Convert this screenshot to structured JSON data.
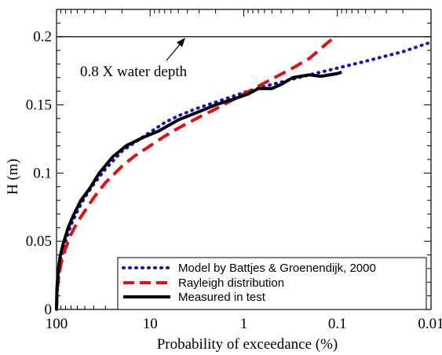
{
  "chart_data": {
    "type": "line",
    "title": "",
    "xlabel": "Probability of exceedance (%)",
    "ylabel": "H (m)",
    "xscale": "log",
    "xaxis_reversed": true,
    "xlim": [
      100,
      0.01
    ],
    "ylim": [
      0,
      0.22
    ],
    "xticks": [
      {
        "value": 100,
        "label": "100"
      },
      {
        "value": 10,
        "label": "10"
      },
      {
        "value": 1,
        "label": "1"
      },
      {
        "value": 0.1,
        "label": "0.1"
      },
      {
        "value": 0.01,
        "label": "0.01"
      }
    ],
    "yticks": [
      {
        "value": 0,
        "label": "0"
      },
      {
        "value": 0.05,
        "label": "0.05"
      },
      {
        "value": 0.1,
        "label": "0.1"
      },
      {
        "value": 0.15,
        "label": "0.15"
      },
      {
        "value": 0.2,
        "label": "0.2"
      }
    ],
    "grid": false,
    "legend_position": "bottom-right",
    "reference_line": {
      "y": 0.2,
      "label": "0.8 X water depth",
      "color": "#000000"
    },
    "series": [
      {
        "name": "Model by Battjes & Groenendijk, 2000",
        "color": "#1010d0",
        "style": "dotted",
        "points": [
          [
            100,
            0.0
          ],
          [
            99,
            0.01
          ],
          [
            95,
            0.025
          ],
          [
            90,
            0.037
          ],
          [
            80,
            0.05
          ],
          [
            70,
            0.062
          ],
          [
            60,
            0.072
          ],
          [
            50,
            0.082
          ],
          [
            40,
            0.092
          ],
          [
            30,
            0.103
          ],
          [
            20,
            0.116
          ],
          [
            15,
            0.122
          ],
          [
            10,
            0.13
          ],
          [
            7,
            0.137
          ],
          [
            5,
            0.142
          ],
          [
            3,
            0.148
          ],
          [
            2,
            0.152
          ],
          [
            1,
            0.159
          ],
          [
            0.5,
            0.165
          ],
          [
            0.2,
            0.172
          ],
          [
            0.1,
            0.177
          ],
          [
            0.05,
            0.182
          ],
          [
            0.02,
            0.189
          ],
          [
            0.01,
            0.196
          ]
        ]
      },
      {
        "name": "Rayleigh distribution",
        "color": "#e01010",
        "style": "dashed",
        "points": [
          [
            100,
            0.0
          ],
          [
            98,
            0.015
          ],
          [
            95,
            0.023
          ],
          [
            90,
            0.033
          ],
          [
            80,
            0.045
          ],
          [
            70,
            0.055
          ],
          [
            60,
            0.064
          ],
          [
            50,
            0.072
          ],
          [
            40,
            0.082
          ],
          [
            30,
            0.093
          ],
          [
            20,
            0.105
          ],
          [
            15,
            0.112
          ],
          [
            10,
            0.12
          ],
          [
            7,
            0.127
          ],
          [
            5,
            0.133
          ],
          [
            3,
            0.141
          ],
          [
            2,
            0.147
          ],
          [
            1,
            0.158
          ],
          [
            0.5,
            0.169
          ],
          [
            0.3,
            0.177
          ],
          [
            0.2,
            0.184
          ],
          [
            0.12,
            0.197
          ],
          [
            0.1,
            0.2
          ]
        ]
      },
      {
        "name": "Measured in test",
        "color": "#000000",
        "style": "solid",
        "points": [
          [
            100,
            0.0
          ],
          [
            99,
            0.015
          ],
          [
            96,
            0.028
          ],
          [
            92,
            0.038
          ],
          [
            85,
            0.048
          ],
          [
            75,
            0.06
          ],
          [
            65,
            0.07
          ],
          [
            55,
            0.08
          ],
          [
            45,
            0.088
          ],
          [
            35,
            0.1
          ],
          [
            25,
            0.112
          ],
          [
            18,
            0.12
          ],
          [
            12,
            0.126
          ],
          [
            8,
            0.131
          ],
          [
            5,
            0.139
          ],
          [
            3,
            0.145
          ],
          [
            2,
            0.15
          ],
          [
            1.2,
            0.155
          ],
          [
            0.9,
            0.158
          ],
          [
            0.7,
            0.162
          ],
          [
            0.5,
            0.162
          ],
          [
            0.4,
            0.165
          ],
          [
            0.3,
            0.17
          ],
          [
            0.2,
            0.172
          ],
          [
            0.15,
            0.171
          ],
          [
            0.1,
            0.173
          ],
          [
            0.09,
            0.174
          ]
        ]
      }
    ]
  }
}
